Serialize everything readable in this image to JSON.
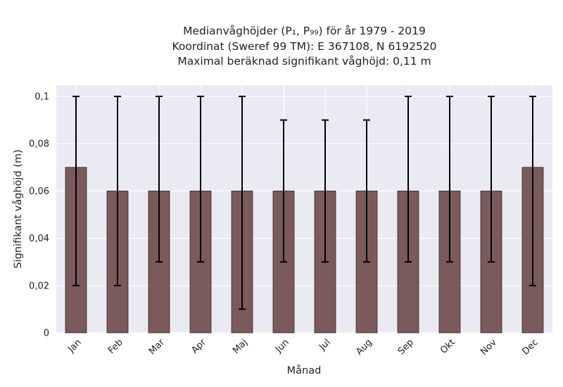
{
  "title_lines": [
    "Medianvåghöjder (P₁, P₉₉) för år 1979 - 2019",
    "Koordinat (Sweref 99 TM): E 367108, N 6192520",
    "Maximal beräknad signifikant våghöjd: 0,11 m"
  ],
  "chart_data": {
    "type": "bar",
    "xlabel": "Månad",
    "ylabel": "Signifikant våghöjd (m)",
    "categories": [
      "Jan",
      "Feb",
      "Mar",
      "Apr",
      "Maj",
      "Jun",
      "Jul",
      "Aug",
      "Sep",
      "Okt",
      "Nov",
      "Dec"
    ],
    "values": [
      0.07,
      0.06,
      0.06,
      0.06,
      0.06,
      0.06,
      0.06,
      0.06,
      0.06,
      0.06,
      0.06,
      0.07
    ],
    "error_low": [
      0.02,
      0.02,
      0.03,
      0.03,
      0.01,
      0.03,
      0.03,
      0.03,
      0.03,
      0.03,
      0.03,
      0.02
    ],
    "error_high": [
      0.1,
      0.1,
      0.1,
      0.1,
      0.1,
      0.09,
      0.09,
      0.09,
      0.1,
      0.1,
      0.1,
      0.1
    ],
    "ylim": [
      0,
      0.1
    ],
    "yticks": [
      0,
      0.02,
      0.04,
      0.06,
      0.08,
      0.1
    ],
    "ytick_labels": [
      "0",
      "0,02",
      "0,04",
      "0,06",
      "0,08",
      "0,1"
    ],
    "grid": true,
    "colors": {
      "bar": "#7a5a5a",
      "bar_edge": "#3a2a2a",
      "error": "#000000",
      "background": "#eaeaf2",
      "grid": "#ffffff"
    }
  }
}
